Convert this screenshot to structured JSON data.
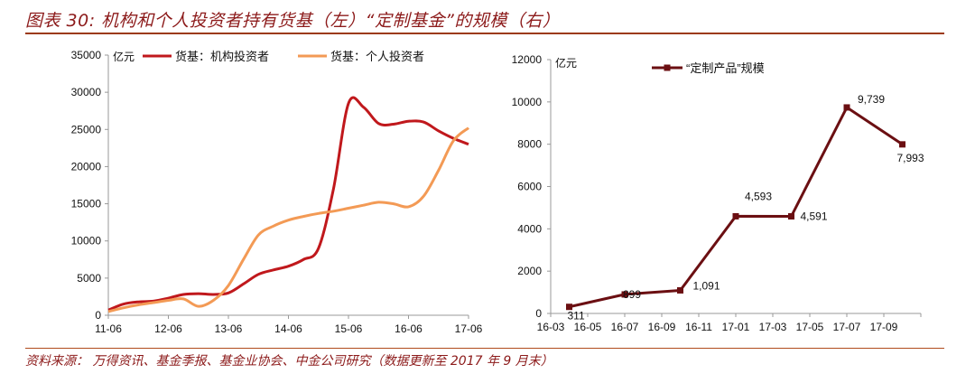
{
  "title": "图表 30: 机构和个人投资者持有货基（左）“定制基金”的规模（右）",
  "source": "资料来源： 万得资讯、基金季报、基金业协会、中金公司研究（数据更新至 2017 年 9 月末）",
  "colors": {
    "institutional": "#c0181c",
    "individual": "#f39a55",
    "custom": "#6b0f12",
    "rule": "#9c3a14",
    "text": "#8c1a1a"
  },
  "chart_data": [
    {
      "type": "line",
      "unit_label": "亿元",
      "ylim": [
        0,
        35000
      ],
      "yticks": [
        0,
        5000,
        10000,
        15000,
        20000,
        25000,
        30000,
        35000
      ],
      "xticks": [
        "11-06",
        "12-06",
        "13-06",
        "14-06",
        "15-06",
        "16-06",
        "17-06"
      ],
      "xrange": [
        0,
        12
      ],
      "series": [
        {
          "name": "货基：机构投资者",
          "x": [
            0,
            0.5,
            1,
            1.5,
            2,
            2.5,
            3,
            3.5,
            4,
            4.5,
            5,
            5.5,
            6,
            6.5,
            7,
            7.5,
            8,
            8.5,
            9,
            9.5,
            10,
            10.5,
            11,
            11.5,
            12
          ],
          "y": [
            700,
            1500,
            1800,
            1900,
            2300,
            2800,
            2900,
            2800,
            3000,
            4200,
            5500,
            6100,
            6600,
            7500,
            9000,
            17000,
            28500,
            28000,
            25800,
            25700,
            26100,
            26000,
            24800,
            23800,
            23000
          ]
        },
        {
          "name": "货基：个人投资者",
          "x": [
            0,
            0.5,
            1,
            1.5,
            2,
            2.5,
            3,
            3.5,
            4,
            4.5,
            5,
            5.5,
            6,
            6.5,
            7,
            7.5,
            8,
            8.5,
            9,
            9.5,
            10,
            10.5,
            11,
            11.5,
            12
          ],
          "y": [
            500,
            1000,
            1400,
            1700,
            2000,
            2200,
            1200,
            2000,
            4000,
            7500,
            10800,
            12000,
            12800,
            13300,
            13700,
            14000,
            14400,
            14800,
            15200,
            15000,
            14600,
            16000,
            19500,
            23500,
            25200
          ]
        }
      ]
    },
    {
      "type": "line",
      "series_label": "“定制产品”规模",
      "unit_label": "亿元",
      "ylim": [
        0,
        12000
      ],
      "yticks": [
        0,
        2000,
        4000,
        6000,
        8000,
        10000,
        12000
      ],
      "xticks": [
        "16-03",
        "16-05",
        "16-07",
        "16-09",
        "16-11",
        "17-01",
        "17-03",
        "17-05",
        "17-07",
        "17-09"
      ],
      "series": [
        {
          "name": "“定制产品”规模",
          "x": [
            "16-03",
            "16-06",
            "16-09",
            "16-12",
            "17-03",
            "17-06",
            "17-09"
          ],
          "x_index": [
            0,
            1.5,
            3,
            4.5,
            6,
            7.5,
            9
          ],
          "y": [
            311,
            899,
            1091,
            4593,
            4591,
            9739,
            7993
          ],
          "labels": [
            "311",
            "899",
            "1,091",
            "4,593",
            "4,591",
            "9,739",
            "7,993"
          ]
        }
      ]
    }
  ]
}
